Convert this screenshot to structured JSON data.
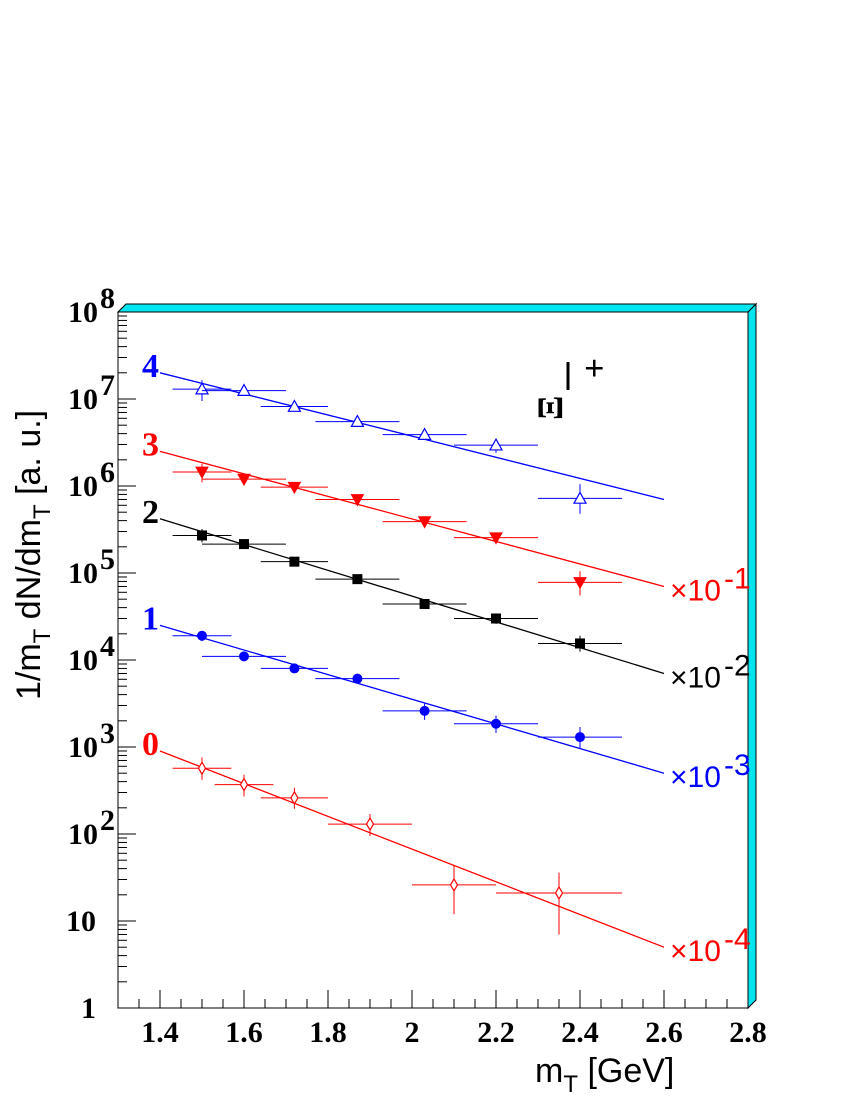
{
  "chart_data": {
    "type": "scatter",
    "particle_label": "Ξ",
    "particle_charge": "+",
    "ylabel_main": "1/m",
    "ylabel_sub": "T",
    "ylabel_mid": " dN/dm",
    "ylabel_sub2": "T",
    "ylabel_unit": "  [a. u.]",
    "xlabel_main": "m",
    "xlabel_sub": "T",
    "xlabel_unit": "  [GeV]",
    "xlim": [
      1.3,
      2.8
    ],
    "ylim": [
      1,
      100000000
    ],
    "yscale": "log",
    "x_ticks": [
      {
        "v": 1.4,
        "label": "1.4"
      },
      {
        "v": 1.6,
        "label": "1.6"
      },
      {
        "v": 1.8,
        "label": "1.8"
      },
      {
        "v": 2.0,
        "label": "2"
      },
      {
        "v": 2.2,
        "label": "2.2"
      },
      {
        "v": 2.4,
        "label": "2.4"
      },
      {
        "v": 2.6,
        "label": "2.6"
      },
      {
        "v": 2.8,
        "label": "2.8"
      }
    ],
    "y_ticks": [
      {
        "v": 1,
        "base": "1",
        "exp": ""
      },
      {
        "v": 10,
        "base": "10",
        "exp": ""
      },
      {
        "v": 100,
        "base": "10",
        "exp": "2"
      },
      {
        "v": 1000,
        "base": "10",
        "exp": "3"
      },
      {
        "v": 10000,
        "base": "10",
        "exp": "4"
      },
      {
        "v": 100000,
        "base": "10",
        "exp": "5"
      },
      {
        "v": 1000000,
        "base": "10",
        "exp": "6"
      },
      {
        "v": 10000000,
        "base": "10",
        "exp": "7"
      },
      {
        "v": 100000000,
        "base": "10",
        "exp": "8"
      }
    ],
    "series": [
      {
        "label": "4",
        "color": "#0000ff",
        "marker": "open-triangle-up",
        "scale_label": "",
        "scale_exp": "",
        "fit": {
          "x": [
            1.4,
            2.6
          ],
          "y": [
            20000000,
            700000
          ]
        },
        "points": [
          {
            "x": 1.5,
            "y": 13000000,
            "xerr": 0.07,
            "ylo": 9500000,
            "yhi": 16500000
          },
          {
            "x": 1.6,
            "y": 12500000,
            "xerr": 0.1,
            "ylo": 11000000,
            "yhi": 14000000
          },
          {
            "x": 1.72,
            "y": 8200000,
            "xerr": 0.08,
            "ylo": 7500000,
            "yhi": 9000000
          },
          {
            "x": 1.87,
            "y": 5500000,
            "xerr": 0.1,
            "ylo": 4800000,
            "yhi": 6200000
          },
          {
            "x": 2.03,
            "y": 3900000,
            "xerr": 0.1,
            "ylo": 3400000,
            "yhi": 4400000
          },
          {
            "x": 2.2,
            "y": 2950000,
            "xerr": 0.1,
            "ylo": 2400000,
            "yhi": 3500000
          },
          {
            "x": 2.4,
            "y": 720000,
            "xerr": 0.1,
            "ylo": 480000,
            "yhi": 1050000
          }
        ]
      },
      {
        "label": "3",
        "color": "#ff0000",
        "marker": "filled-triangle-down",
        "scale_label": "×10",
        "scale_exp": "-1",
        "fit": {
          "x": [
            1.4,
            2.6
          ],
          "y": [
            2500000,
            70000
          ]
        },
        "points": [
          {
            "x": 1.5,
            "y": 1450000,
            "xerr": 0.07,
            "ylo": 1100000,
            "yhi": 1800000
          },
          {
            "x": 1.6,
            "y": 1200000,
            "xerr": 0.1,
            "ylo": 1050000,
            "yhi": 1350000
          },
          {
            "x": 1.72,
            "y": 970000,
            "xerr": 0.08,
            "ylo": 880000,
            "yhi": 1060000
          },
          {
            "x": 1.87,
            "y": 700000,
            "xerr": 0.1,
            "ylo": 630000,
            "yhi": 780000
          },
          {
            "x": 2.03,
            "y": 390000,
            "xerr": 0.1,
            "ylo": 340000,
            "yhi": 440000
          },
          {
            "x": 2.2,
            "y": 255000,
            "xerr": 0.1,
            "ylo": 225000,
            "yhi": 285000
          },
          {
            "x": 2.4,
            "y": 78000,
            "xerr": 0.1,
            "ylo": 55000,
            "yhi": 105000
          }
        ]
      },
      {
        "label": "2",
        "color": "#000000",
        "marker": "filled-square",
        "scale_label": "×10",
        "scale_exp": "-2",
        "fit": {
          "x": [
            1.4,
            2.6
          ],
          "y": [
            420000,
            7000
          ]
        },
        "points": [
          {
            "x": 1.5,
            "y": 270000,
            "xerr": 0.07,
            "ylo": 225000,
            "yhi": 320000
          },
          {
            "x": 1.6,
            "y": 215000,
            "xerr": 0.1,
            "ylo": 195000,
            "yhi": 235000
          },
          {
            "x": 1.72,
            "y": 135000,
            "xerr": 0.08,
            "ylo": 122000,
            "yhi": 148000
          },
          {
            "x": 1.87,
            "y": 85000,
            "xerr": 0.1,
            "ylo": 77000,
            "yhi": 93000
          },
          {
            "x": 2.03,
            "y": 44000,
            "xerr": 0.1,
            "ylo": 39000,
            "yhi": 49000
          },
          {
            "x": 2.2,
            "y": 30000,
            "xerr": 0.1,
            "ylo": 26000,
            "yhi": 34000
          },
          {
            "x": 2.4,
            "y": 15500,
            "xerr": 0.1,
            "ylo": 12500,
            "yhi": 19000
          }
        ]
      },
      {
        "label": "1",
        "color": "#0000ff",
        "marker": "filled-circle",
        "scale_label": "×10",
        "scale_exp": "-3",
        "fit": {
          "x": [
            1.4,
            2.6
          ],
          "y": [
            25000,
            500
          ]
        },
        "points": [
          {
            "x": 1.5,
            "y": 19000,
            "xerr": 0.07,
            "ylo": 16500,
            "yhi": 21500
          },
          {
            "x": 1.6,
            "y": 11000,
            "xerr": 0.1,
            "ylo": 10000,
            "yhi": 12000
          },
          {
            "x": 1.72,
            "y": 8000,
            "xerr": 0.08,
            "ylo": 7300,
            "yhi": 8700
          },
          {
            "x": 1.87,
            "y": 6100,
            "xerr": 0.1,
            "ylo": 5500,
            "yhi": 6700
          },
          {
            "x": 2.03,
            "y": 2600,
            "xerr": 0.1,
            "ylo": 2050,
            "yhi": 3150
          },
          {
            "x": 2.2,
            "y": 1850,
            "xerr": 0.1,
            "ylo": 1450,
            "yhi": 2300
          },
          {
            "x": 2.4,
            "y": 1300,
            "xerr": 0.1,
            "ylo": 950,
            "yhi": 1700
          }
        ]
      },
      {
        "label": "0",
        "color": "#ff0000",
        "marker": "open-diamond",
        "scale_label": "×10",
        "scale_exp": "-4",
        "fit": {
          "x": [
            1.4,
            2.6
          ],
          "y": [
            900,
            5
          ]
        },
        "points": [
          {
            "x": 1.5,
            "y": 570,
            "xerr": 0.07,
            "ylo": 420,
            "yhi": 760
          },
          {
            "x": 1.6,
            "y": 370,
            "xerr": 0.07,
            "ylo": 270,
            "yhi": 480
          },
          {
            "x": 1.72,
            "y": 260,
            "xerr": 0.08,
            "ylo": 195,
            "yhi": 340
          },
          {
            "x": 1.9,
            "y": 130,
            "xerr": 0.1,
            "ylo": 95,
            "yhi": 170
          },
          {
            "x": 2.1,
            "y": 26,
            "xerr": 0.1,
            "ylo": 12,
            "yhi": 44
          },
          {
            "x": 2.35,
            "y": 21,
            "xerr": 0.15,
            "ylo": 7,
            "yhi": 36
          }
        ]
      }
    ]
  }
}
